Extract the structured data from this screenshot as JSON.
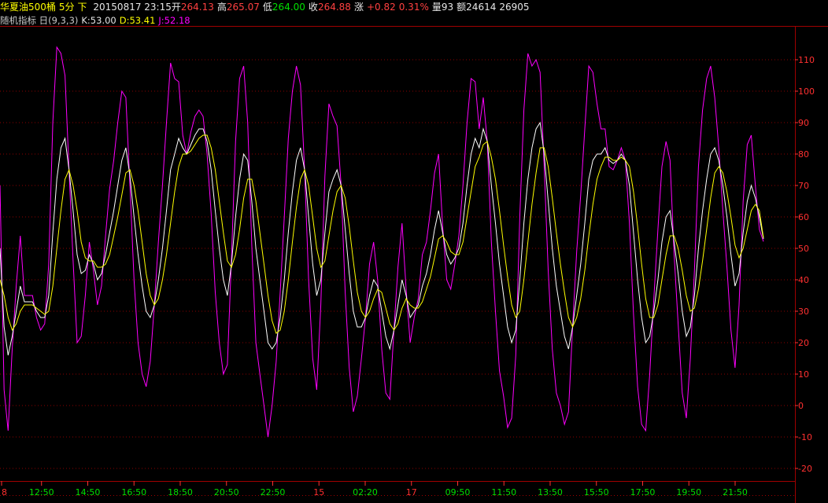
{
  "header": {
    "instrument": "华夏油500桶",
    "period": "5分",
    "arrow_label": "下",
    "datetime": "20150817 23:15",
    "open_label": "开",
    "open": "264.13",
    "high_label": "高",
    "high": "265.07",
    "low_label": "低",
    "low": "264.00",
    "close_label": "收",
    "close": "264.88",
    "change_label": "涨",
    "change": "+0.82",
    "change_pct": "0.31%",
    "volume_label": "量",
    "volume": "93",
    "amount_label": "额",
    "amount": "24614",
    "extra_value": "26905"
  },
  "indicator": {
    "name": "随机指标",
    "calendar_icon": "calendar-icon",
    "params": "(9,3,3)",
    "k_label": "K:53.00",
    "d_label": "D:53.41",
    "j_label": "J:52.18"
  },
  "colors": {
    "k": "#ffffff",
    "d": "#ffff00",
    "j": "#ff00ff",
    "axis": "#ff3030",
    "time_label": "#00e000",
    "day_label": "#ff3030",
    "grid": "#8b0000",
    "frame": "#a00000"
  },
  "chart_data": {
    "type": "line",
    "ylim": [
      -25,
      115
    ],
    "yticks": [
      110,
      100,
      90,
      80,
      70,
      60,
      50,
      40,
      30,
      20,
      10,
      0,
      -10,
      -20
    ],
    "grid": true,
    "x_tick_labels": [
      "8",
      "12:50",
      "14:50",
      "16:50",
      "18:50",
      "20:50",
      "22:50",
      "15",
      "02:20",
      "17",
      "09:50",
      "11:50",
      "13:50",
      "15:50",
      "17:50",
      "19:50",
      "21:50"
    ],
    "day_marker_labels": [
      "8",
      "15",
      "17"
    ],
    "series": [
      {
        "name": "K",
        "values": [
          50,
          25,
          16,
          22,
          30,
          38,
          33,
          33,
          33,
          30,
          28,
          28,
          35,
          55,
          72,
          82,
          85,
          75,
          62,
          48,
          42,
          43,
          48,
          45,
          40,
          42,
          48,
          55,
          62,
          70,
          78,
          82,
          73,
          60,
          48,
          38,
          30,
          28,
          32,
          40,
          50,
          62,
          75,
          80,
          85,
          82,
          80,
          83,
          86,
          88,
          88,
          84,
          75,
          62,
          50,
          40,
          35,
          45,
          60,
          72,
          80,
          78,
          65,
          50,
          40,
          30,
          20,
          18,
          20,
          28,
          40,
          55,
          68,
          78,
          82,
          75,
          60,
          45,
          35,
          40,
          55,
          68,
          72,
          75,
          70,
          56,
          42,
          30,
          25,
          25,
          28,
          35,
          40,
          38,
          30,
          22,
          18,
          24,
          32,
          40,
          35,
          28,
          30,
          32,
          38,
          42,
          48,
          56,
          62,
          55,
          48,
          45,
          47,
          50,
          58,
          70,
          80,
          85,
          82,
          88,
          84,
          70,
          58,
          45,
          35,
          25,
          20,
          24,
          40,
          58,
          72,
          82,
          88,
          90,
          80,
          65,
          50,
          38,
          30,
          22,
          18,
          25,
          35,
          45,
          58,
          72,
          78,
          80,
          80,
          82,
          78,
          77,
          78,
          80,
          78,
          70,
          55,
          40,
          28,
          20,
          22,
          30,
          40,
          52,
          60,
          62,
          52,
          42,
          30,
          22,
          25,
          35,
          50,
          62,
          72,
          80,
          82,
          78,
          70,
          60,
          48,
          38,
          42,
          55,
          65,
          70,
          66,
          60,
          53
        ]
      },
      {
        "name": "D",
        "values": [
          40,
          35,
          28,
          24,
          26,
          30,
          32,
          32,
          32,
          31,
          30,
          29,
          30,
          38,
          50,
          62,
          72,
          75,
          70,
          62,
          52,
          47,
          46,
          46,
          44,
          44,
          45,
          48,
          54,
          60,
          67,
          74,
          75,
          70,
          62,
          52,
          42,
          35,
          32,
          34,
          40,
          48,
          58,
          68,
          76,
          80,
          80,
          81,
          83,
          85,
          86,
          86,
          82,
          75,
          65,
          55,
          46,
          44,
          48,
          56,
          66,
          72,
          72,
          65,
          55,
          45,
          35,
          27,
          23,
          24,
          30,
          40,
          52,
          63,
          72,
          75,
          70,
          60,
          50,
          44,
          46,
          54,
          62,
          68,
          70,
          66,
          57,
          46,
          36,
          30,
          28,
          30,
          34,
          37,
          36,
          31,
          26,
          24,
          26,
          31,
          34,
          32,
          31,
          31,
          33,
          37,
          41,
          47,
          53,
          54,
          52,
          49,
          48,
          48,
          52,
          60,
          68,
          76,
          79,
          83,
          84,
          79,
          72,
          62,
          51,
          41,
          32,
          28,
          30,
          40,
          52,
          64,
          74,
          82,
          82,
          76,
          66,
          55,
          45,
          36,
          28,
          25,
          28,
          34,
          43,
          54,
          64,
          72,
          76,
          79,
          79,
          78,
          78,
          79,
          78,
          76,
          68,
          57,
          45,
          34,
          28,
          28,
          32,
          40,
          48,
          54,
          54,
          50,
          43,
          35,
          30,
          31,
          37,
          46,
          56,
          66,
          74,
          76,
          74,
          68,
          60,
          51,
          47,
          50,
          56,
          62,
          64,
          62,
          53.4
        ]
      },
      {
        "name": "J",
        "values": [
          70,
          5,
          -8,
          18,
          38,
          54,
          35,
          35,
          35,
          28,
          24,
          26,
          45,
          90,
          114,
          112,
          105,
          75,
          46,
          20,
          22,
          35,
          52,
          43,
          32,
          38,
          54,
          69,
          78,
          90,
          100,
          98,
          70,
          40,
          20,
          10,
          6,
          14,
          32,
          52,
          70,
          90,
          109,
          104,
          103,
          86,
          80,
          87,
          92,
          94,
          92,
          80,
          61,
          36,
          20,
          10,
          13,
          47,
          84,
          104,
          108,
          90,
          51,
          20,
          10,
          0,
          -10,
          0,
          14,
          36,
          60,
          85,
          100,
          108,
          102,
          75,
          40,
          15,
          5,
          32,
          73,
          96,
          92,
          89,
          70,
          36,
          12,
          -2,
          3,
          15,
          28,
          45,
          52,
          40,
          18,
          4,
          2,
          24,
          44,
          58,
          37,
          20,
          28,
          34,
          48,
          52,
          62,
          74,
          80,
          57,
          40,
          37,
          45,
          54,
          70,
          90,
          104,
          103,
          88,
          98,
          84,
          52,
          30,
          11,
          3,
          -7,
          -4,
          16,
          60,
          94,
          112,
          108,
          110,
          106,
          76,
          43,
          18,
          4,
          0,
          -6,
          -2,
          25,
          49,
          67,
          88,
          108,
          106,
          96,
          88,
          88,
          76,
          75,
          78,
          82,
          78,
          58,
          29,
          6,
          -6,
          -8,
          10,
          34,
          56,
          76,
          84,
          78,
          48,
          26,
          4,
          -4,
          15,
          43,
          76,
          94,
          104,
          108,
          98,
          82,
          62,
          44,
          24,
          12,
          32,
          65,
          83,
          86,
          70,
          56,
          52.18
        ]
      }
    ]
  }
}
